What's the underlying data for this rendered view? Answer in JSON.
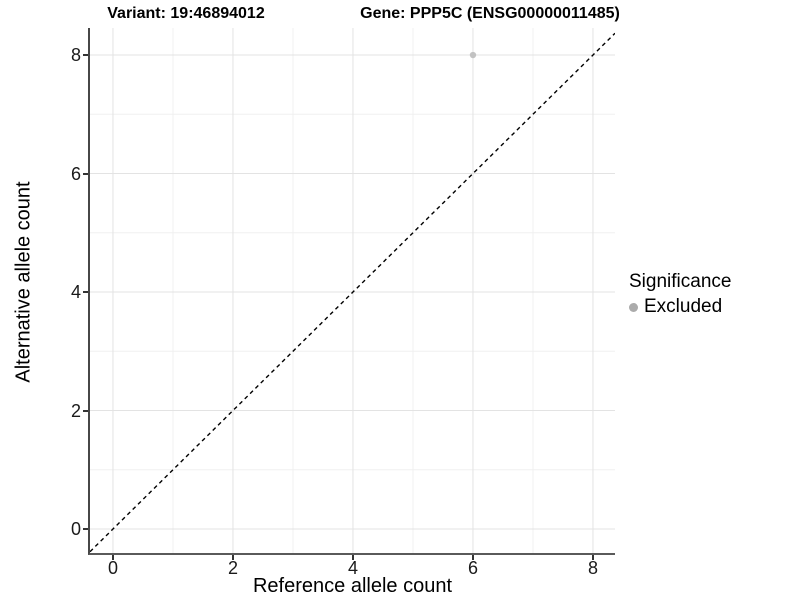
{
  "titles": {
    "variant": "Variant: 19:46894012",
    "gene": "Gene: PPP5C (ENSG00000011485)"
  },
  "axes": {
    "x_label": "Reference allele count",
    "y_label": "Alternative allele count"
  },
  "legend": {
    "title": "Significance",
    "items": [
      {
        "label": "Excluded",
        "color": "#ababab"
      }
    ]
  },
  "colors": {
    "major_grid": "#e3e3e3",
    "minor_grid": "#f0f0f0",
    "axis_line": "#474747",
    "reference_line": "#000000",
    "point": "#c2c2c2",
    "background": "#ffffff"
  },
  "chart_data": {
    "type": "scatter",
    "title": "Variant: 19:46894012 / Gene: PPP5C (ENSG00000011485)",
    "xlabel": "Reference allele count",
    "ylabel": "Alternative allele count",
    "xlim": [
      -0.383,
      8.367
    ],
    "ylim": [
      -0.405,
      8.456
    ],
    "x_ticks": [
      0,
      2,
      4,
      6,
      8
    ],
    "y_ticks": [
      0,
      2,
      4,
      6,
      8
    ],
    "x_minor_ticks": [
      1,
      3,
      5,
      7
    ],
    "y_minor_ticks": [
      1,
      3,
      5,
      7
    ],
    "grid": "major+minor",
    "legend_position": "right",
    "legend_title": "Significance",
    "series": [
      {
        "name": "Excluded",
        "color": "#c2c2c2",
        "marker": "circle",
        "marker_radius": 3.2,
        "points": [
          [
            6,
            8
          ]
        ]
      }
    ],
    "reference_line": {
      "kind": "identity",
      "equation": "y = x",
      "style": "dashed",
      "color": "#000000"
    }
  }
}
